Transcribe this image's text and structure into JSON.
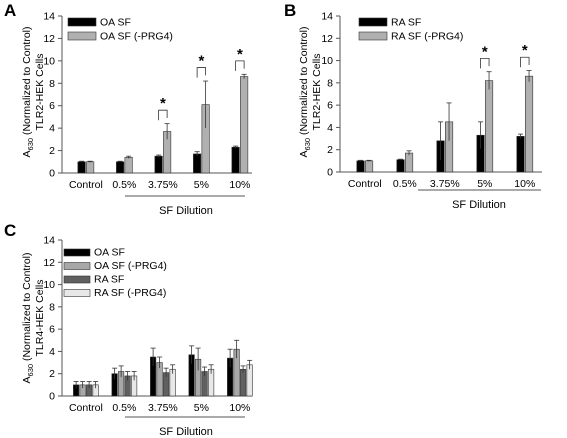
{
  "chart_data": [
    {
      "type": "bar",
      "panel": "A",
      "ylabel_main": "A",
      "ylabel_sub": "630",
      "ylabel_rest": " (Normalized to Control)",
      "ylabel_line2": "TLR2-HEK Cells",
      "ylim": [
        0,
        14
      ],
      "yticks": [
        0,
        2,
        4,
        6,
        8,
        10,
        12,
        14
      ],
      "categories": [
        "Control",
        "0.5%",
        "3.75%",
        "5%",
        "10%"
      ],
      "xlabel": "SF Dilution",
      "legend_position": "top-left",
      "series": [
        {
          "name": "OA SF",
          "color": "#000000",
          "values": [
            1.0,
            1.0,
            1.5,
            1.7,
            2.3
          ],
          "errors": [
            0.05,
            0.05,
            0.1,
            0.2,
            0.1
          ]
        },
        {
          "name": "OA SF (-PRG4)",
          "color": "#b0b0b0",
          "values": [
            1.0,
            1.4,
            3.7,
            6.1,
            8.6
          ],
          "errors": [
            0.05,
            0.1,
            0.7,
            2.1,
            0.2
          ]
        }
      ],
      "significance": [
        {
          "category_index": 2,
          "label": "*"
        },
        {
          "category_index": 3,
          "label": "*"
        },
        {
          "category_index": 4,
          "label": "*"
        }
      ]
    },
    {
      "type": "bar",
      "panel": "B",
      "ylabel_main": "A",
      "ylabel_sub": "630",
      "ylabel_rest": " (Normalized to Control)",
      "ylabel_line2": "TLR2-HEK Cells",
      "ylim": [
        0,
        14
      ],
      "yticks": [
        0,
        2,
        4,
        6,
        8,
        10,
        12,
        14
      ],
      "categories": [
        "Control",
        "0.5%",
        "3.75%",
        "5%",
        "10%"
      ],
      "xlabel": "SF Dilution",
      "legend_position": "top-left",
      "series": [
        {
          "name": "RA SF",
          "color": "#000000",
          "values": [
            1.0,
            1.1,
            2.8,
            3.3,
            3.2
          ],
          "errors": [
            0.05,
            0.05,
            1.7,
            1.2,
            0.2
          ]
        },
        {
          "name": "RA SF (-PRG4)",
          "color": "#b0b0b0",
          "values": [
            1.0,
            1.7,
            4.5,
            8.2,
            8.6
          ],
          "errors": [
            0.05,
            0.2,
            1.7,
            0.8,
            0.5
          ]
        }
      ],
      "significance": [
        {
          "category_index": 3,
          "label": "*"
        },
        {
          "category_index": 4,
          "label": "*"
        }
      ]
    },
    {
      "type": "bar",
      "panel": "C",
      "ylabel_main": "A",
      "ylabel_sub": "630",
      "ylabel_rest": " (Normalized to Control)",
      "ylabel_line2": "TLR4-HEK Cells",
      "ylim": [
        0,
        14
      ],
      "yticks": [
        0,
        2,
        4,
        6,
        8,
        10,
        12,
        14
      ],
      "categories": [
        "Control",
        "0.5%",
        "3.75%",
        "5%",
        "10%"
      ],
      "xlabel": "SF Dilution",
      "legend_position": "top-left",
      "series": [
        {
          "name": "OA SF",
          "color": "#000000",
          "values": [
            1.0,
            2.0,
            3.5,
            3.7,
            3.4
          ],
          "errors": [
            0.3,
            0.5,
            0.8,
            0.8,
            0.8
          ]
        },
        {
          "name": "OA SF (-PRG4)",
          "color": "#a8a8a8",
          "values": [
            1.0,
            2.2,
            3.0,
            3.3,
            4.2
          ],
          "errors": [
            0.3,
            0.5,
            0.5,
            1.0,
            0.8
          ]
        },
        {
          "name": "RA SF",
          "color": "#606060",
          "values": [
            1.0,
            1.8,
            2.1,
            2.2,
            2.4
          ],
          "errors": [
            0.3,
            0.4,
            0.4,
            0.4,
            0.3
          ]
        },
        {
          "name": "RA SF (-PRG4)",
          "color": "#e8e8e8",
          "values": [
            1.0,
            1.8,
            2.4,
            2.4,
            2.8
          ],
          "errors": [
            0.3,
            0.4,
            0.4,
            0.4,
            0.4
          ]
        }
      ],
      "significance": []
    }
  ]
}
